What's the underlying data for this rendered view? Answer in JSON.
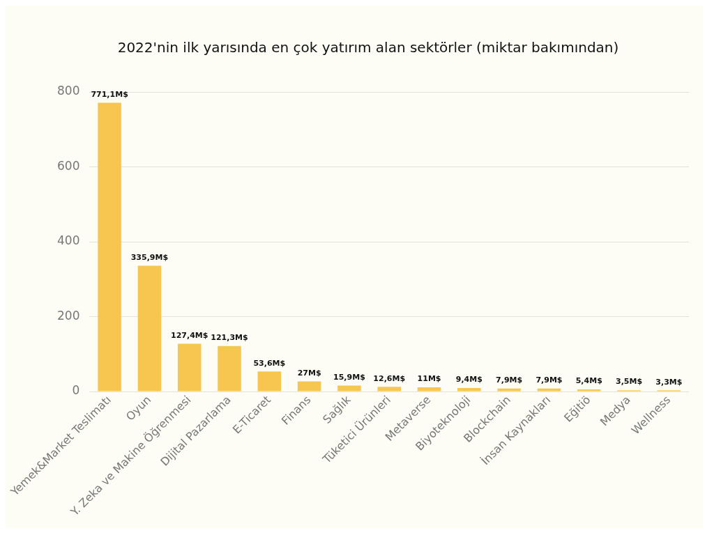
{
  "chart_data": {
    "type": "bar",
    "title": "2022'nin ilk yarısında en çok yatırım alan sektörler (miktar bakımından)",
    "categories": [
      "Yemek&Market Teslimatı",
      "Oyun",
      "Y. Zeka ve Makine Öğrenmesi",
      "Dijital Pazarlama",
      "E-Ticaret",
      "Finans",
      "Sağlık",
      "Tüketici Ürünleri",
      "Metaverse",
      "Biyoteknoloji",
      "Blockchain",
      "İnsan Kaynakları",
      "Eğitiö",
      "Medya",
      "Wellness"
    ],
    "values": [
      771.1,
      335.9,
      127.4,
      121.3,
      53.6,
      27,
      15.9,
      12.6,
      11,
      9.4,
      7.9,
      7.9,
      5.4,
      3.5,
      3.3
    ],
    "value_labels": [
      "771,1M$",
      "335,9M$",
      "127,4M$",
      "121,3M$",
      "53,6M$",
      "27M$",
      "15,9M$",
      "12,6M$",
      "11M$",
      "9,4M$",
      "7,9M$",
      "7,9M$",
      "5,4M$",
      "3,5M$",
      "3,3M$"
    ],
    "color": "#f7c64f",
    "ylim": [
      0,
      800
    ],
    "yticks": [
      0,
      200,
      400,
      600,
      800
    ],
    "grid": "y",
    "legend": false
  }
}
